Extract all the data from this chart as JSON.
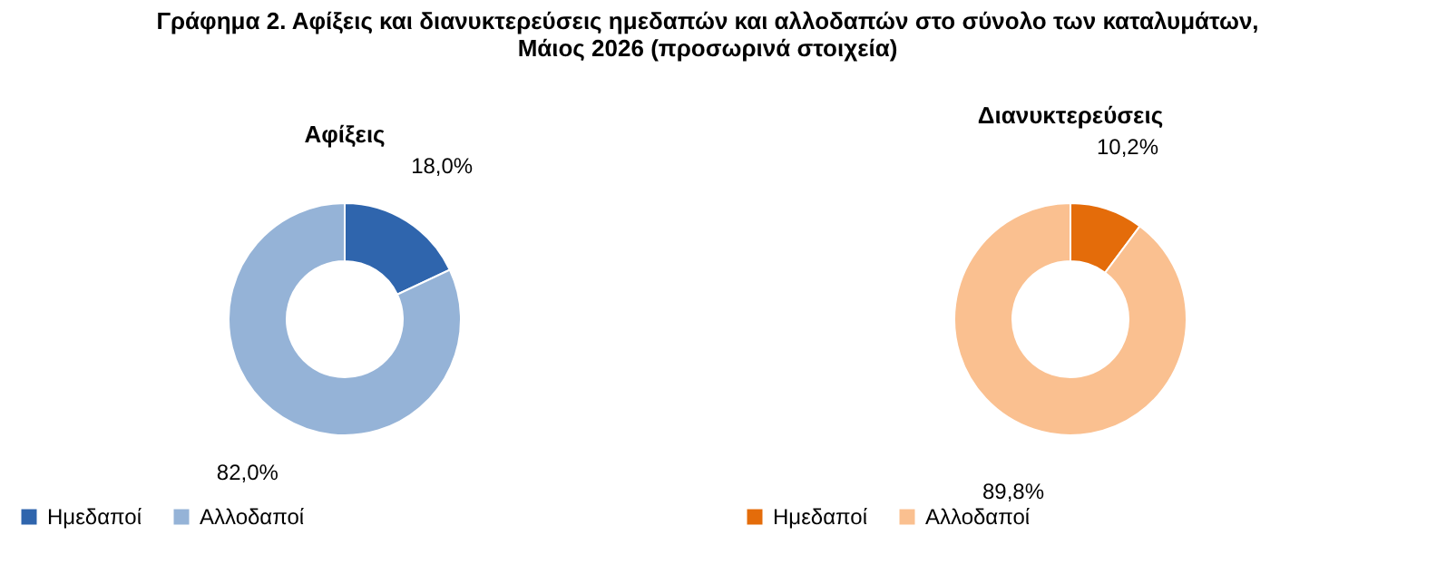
{
  "chart_data": [
    {
      "type": "donut",
      "title": "Γράφημα 2. Αφίξεις και διανυκτερεύσεις ημεδαπών και αλλοδαπών στο σύνολο των καταλυμάτων,\nΜάιος 2026  (προσωρινά στοιχεία)",
      "subtitle": "Αφίξεις",
      "categories": [
        "Ημεδαποί",
        "Αλλοδαποί"
      ],
      "values": [
        18.0,
        82.0
      ],
      "colors": [
        "#2f65ad",
        "#95b3d7"
      ],
      "value_labels": [
        "18,0%",
        "82,0%"
      ],
      "legend": "bottom"
    },
    {
      "type": "donut",
      "title": "Διανυκτερεύσεις",
      "categories": [
        "Ημεδαποί",
        "Αλλοδαποί"
      ],
      "values": [
        10.2,
        89.8
      ],
      "colors": [
        "#e46c0a",
        "#fac090"
      ],
      "value_labels": [
        "10,2%",
        "89,8%"
      ],
      "legend": "bottom"
    }
  ]
}
